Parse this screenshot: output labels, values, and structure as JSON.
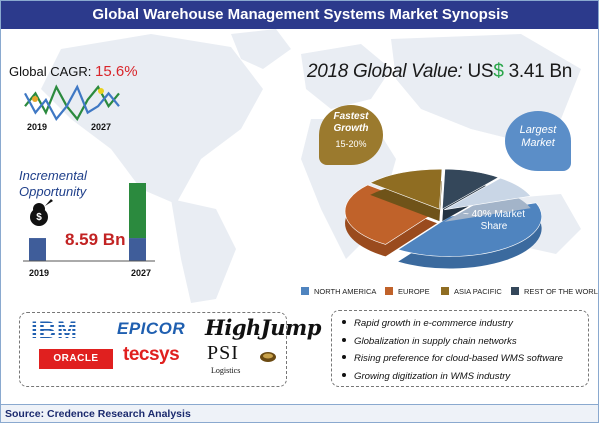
{
  "title": "Global Warehouse Management Systems Market Synopsis",
  "cagr": {
    "label": "Global CAGR:",
    "value": "15.6%"
  },
  "incremental": {
    "label_line1": "Incremental",
    "label_line2": "Opportunity",
    "value": "8.59 Bn"
  },
  "global_value": {
    "prefix": "2018 Global Value:",
    "currency": "US",
    "dollar": "$",
    "amount": "3.41 Bn"
  },
  "fastest_growth": {
    "line1": "Fastest",
    "line2": "Growth",
    "range": "15-20%"
  },
  "largest_market": {
    "line1": "Largest",
    "line2": "Market"
  },
  "share_label": {
    "line1": "~ 40% Market",
    "line2": "Share"
  },
  "vendors": [
    "IBM",
    "EPICOR",
    "HighJump",
    "ORACLE",
    "tecsys",
    "PSI",
    "Logistics"
  ],
  "drivers": [
    "Rapid growth in e-commerce industry",
    "Globalization in supply chain networks",
    "Rising preference for cloud-based WMS software",
    "Growing digitization in WMS industry"
  ],
  "source": "Source: Credence Research Analysis",
  "colors": {
    "title_bg": "#2c3a8c",
    "north_america": "#4f84bf",
    "europe": "#c0622a",
    "asia_pacific": "#8f6d22",
    "rest_of_world": "#34475a",
    "extra_slice": "#c9d6e6",
    "bar_blue": "#3f5d9a",
    "bar_green": "#2b8a3e",
    "cagr_value": "#d9262b",
    "incremental_value": "#c22323"
  },
  "chart_data": [
    {
      "type": "line",
      "x_labels": [
        "2019",
        "2027"
      ],
      "series": [
        {
          "values": [
            3,
            5,
            2,
            6,
            3,
            1,
            4,
            6,
            3,
            5
          ]
        },
        {
          "values": [
            5,
            2,
            4,
            1,
            3,
            6,
            2,
            3,
            5,
            3
          ]
        }
      ]
    },
    {
      "type": "bar",
      "categories": [
        "2019",
        "2027"
      ],
      "values": [
        1,
        3.4
      ]
    },
    {
      "type": "pie",
      "legend": [
        "NORTH AMERICA",
        "EUROPE",
        "ASIA PACIFIC",
        "REST OF THE WORLD"
      ],
      "legend_placement": "bottom",
      "slices": [
        {
          "name": "NORTH AMERICA",
          "value": 40
        },
        {
          "name": "EUROPE",
          "value": 27
        },
        {
          "name": "ASIA PACIFIC",
          "value": 14
        },
        {
          "name": "REST OF THE WORLD",
          "value": 10
        },
        {
          "value": 9
        }
      ]
    }
  ]
}
